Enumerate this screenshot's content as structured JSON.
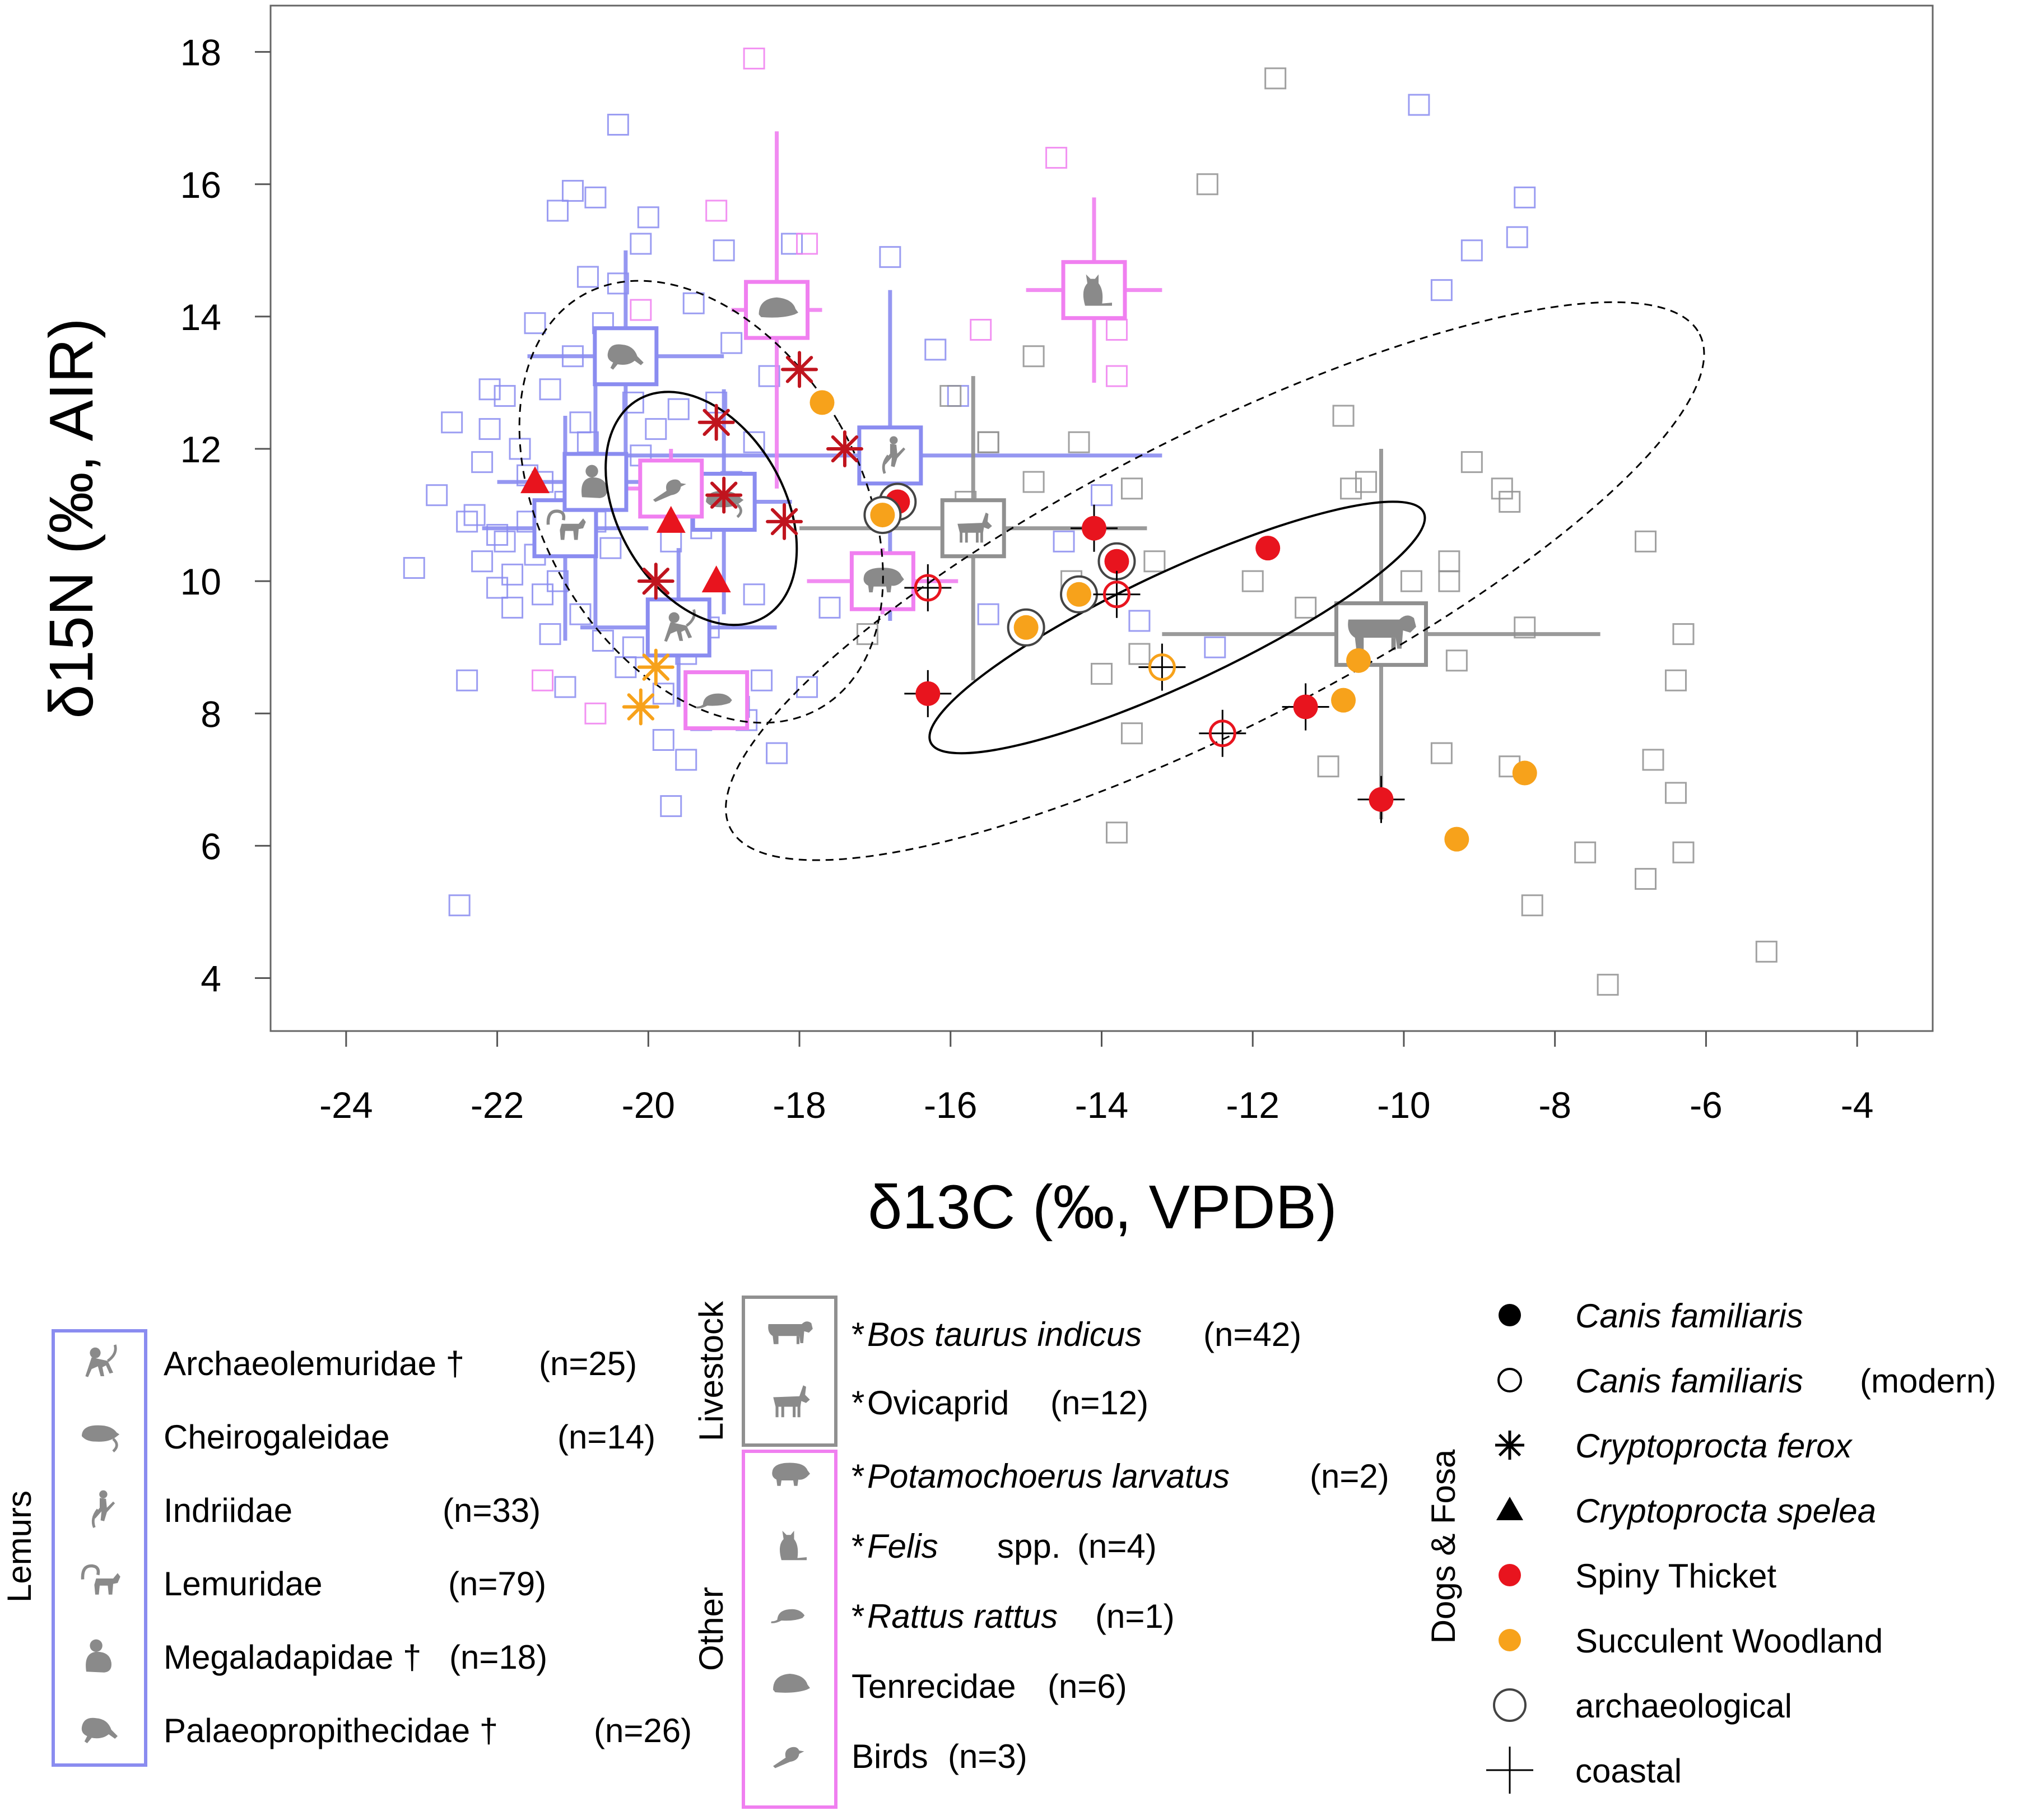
{
  "chart_data": {
    "type": "scatter",
    "title": "",
    "xlabel": "δ13C (‰, VPDB)",
    "ylabel": "δ15N (‰, AIR)",
    "xlim": [
      -25,
      -3
    ],
    "ylim": [
      3.2,
      18.7
    ],
    "xticks": [
      -24,
      -22,
      -20,
      -18,
      -16,
      -14,
      -12,
      -10,
      -8,
      -6,
      -4
    ],
    "yticks": [
      4,
      6,
      8,
      10,
      12,
      14,
      16,
      18
    ],
    "xtick_labels": [
      "-24",
      "-22",
      "-20",
      "-18",
      "-16",
      "-14",
      "-12",
      "-10",
      "-8",
      "-6",
      "-4"
    ],
    "ytick_labels": [
      "4",
      "6",
      "8",
      "10",
      "12",
      "14",
      "16",
      "18"
    ],
    "colors": {
      "lemur": "#8a8cf0",
      "other": "#f07ff0",
      "livestock": "#909090",
      "spiny": "#e8141e",
      "succulent": "#f7a21b",
      "fosa": "#c0141e"
    },
    "background_points": {
      "lemur": [
        [
          -23.1,
          10.2
        ],
        [
          -22.5,
          5.1
        ],
        [
          -22.4,
          8.5
        ],
        [
          -22.3,
          11
        ],
        [
          -22.2,
          11.8
        ],
        [
          -22.1,
          12.3
        ],
        [
          -22,
          10.7
        ],
        [
          -21.9,
          12.8
        ],
        [
          -21.8,
          9.6
        ],
        [
          -21.7,
          12
        ],
        [
          -21.6,
          10.9
        ],
        [
          -21.5,
          13.9
        ],
        [
          -21.4,
          11.5
        ],
        [
          -21.3,
          12.9
        ],
        [
          -21.2,
          15.6
        ],
        [
          -21.1,
          8.4
        ],
        [
          -21,
          15.9
        ],
        [
          -20.9,
          12.4
        ],
        [
          -20.8,
          14.6
        ],
        [
          -20.7,
          15.8
        ],
        [
          -20.6,
          9.1
        ],
        [
          -20.5,
          10.5
        ],
        [
          -20.4,
          16.9
        ],
        [
          -20.3,
          13.5
        ],
        [
          -20.2,
          12.7
        ],
        [
          -20.1,
          15.1
        ],
        [
          -20,
          15.5
        ],
        [
          -19.9,
          11.3
        ],
        [
          -19.8,
          7.6
        ],
        [
          -19.7,
          6.6
        ],
        [
          -19.6,
          12.6
        ],
        [
          -19.5,
          8.9
        ],
        [
          -19.4,
          14.2
        ],
        [
          -19.3,
          10.8
        ],
        [
          -19.2,
          9.3
        ],
        [
          -19,
          15
        ],
        [
          -18.9,
          11.5
        ],
        [
          -18.7,
          7.9
        ],
        [
          -18.6,
          12.1
        ],
        [
          -18.5,
          8.5
        ],
        [
          -18.4,
          13.1
        ],
        [
          -18.3,
          7.4
        ],
        [
          -18.1,
          15.1
        ],
        [
          -17.9,
          8.4
        ],
        [
          -17.6,
          9.6
        ],
        [
          -16.8,
          14.9
        ],
        [
          -16.2,
          13.5
        ],
        [
          -15.9,
          12.8
        ],
        [
          -15.5,
          9.5
        ],
        [
          -14.5,
          10.6
        ],
        [
          -14,
          11.3
        ],
        [
          -13.5,
          9.4
        ],
        [
          -12.5,
          9
        ],
        [
          -9.8,
          17.2
        ],
        [
          -9.5,
          14.4
        ],
        [
          -9.1,
          15
        ],
        [
          -8.5,
          15.2
        ],
        [
          -8.4,
          15.8
        ],
        [
          -22.2,
          10.3
        ],
        [
          -21.8,
          10.1
        ],
        [
          -22,
          9.9
        ],
        [
          -21.5,
          10.4
        ],
        [
          -21.9,
          10.6
        ],
        [
          -22.4,
          10.9
        ],
        [
          -21.2,
          10
        ],
        [
          -20.9,
          9.5
        ],
        [
          -21.3,
          9.2
        ],
        [
          -21.6,
          11.6
        ],
        [
          -21.1,
          11.2
        ],
        [
          -20.8,
          12.1
        ],
        [
          -21,
          13.4
        ],
        [
          -20.6,
          13.9
        ],
        [
          -20.4,
          14.5
        ],
        [
          -20.1,
          11.9
        ],
        [
          -19.9,
          12.3
        ],
        [
          -19.7,
          10.6
        ],
        [
          -20.2,
          9
        ],
        [
          -19.8,
          8.3
        ],
        [
          -20.3,
          8.7
        ],
        [
          -19.5,
          7.3
        ],
        [
          -19.3,
          7.9
        ],
        [
          -18.8,
          8.1
        ],
        [
          -18.6,
          9.8
        ],
        [
          -19.1,
          12.7
        ],
        [
          -18.9,
          13.6
        ],
        [
          -22.6,
          12.4
        ],
        [
          -22.8,
          11.3
        ],
        [
          -22.1,
          12.9
        ],
        [
          -21.4,
          9.8
        ],
        [
          -20.7,
          10.9
        ]
      ],
      "other": [
        [
          -18.6,
          17.9
        ],
        [
          -17.9,
          15.1
        ],
        [
          -14.6,
          16.4
        ],
        [
          -15.6,
          13.8
        ],
        [
          -13.8,
          13.8
        ],
        [
          -13.8,
          13.1
        ],
        [
          -19.1,
          15.6
        ],
        [
          -20.1,
          14.1
        ],
        [
          -20.7,
          8
        ],
        [
          -21.4,
          8.5
        ]
      ],
      "livestock": [
        [
          -11.7,
          17.6
        ],
        [
          -12.6,
          16
        ],
        [
          -10.8,
          12.5
        ],
        [
          -14.9,
          13.4
        ],
        [
          -14.3,
          12.1
        ],
        [
          -15.5,
          12.1
        ],
        [
          -14.9,
          11.5
        ],
        [
          -13.6,
          11.4
        ],
        [
          -13.3,
          10.3
        ],
        [
          -14.4,
          10
        ],
        [
          -12,
          10
        ],
        [
          -11.3,
          9.6
        ],
        [
          -13.5,
          8.9
        ],
        [
          -14,
          8.6
        ],
        [
          -13.6,
          7.7
        ],
        [
          -13.8,
          6.2
        ],
        [
          -11,
          7.2
        ],
        [
          -10.7,
          11.4
        ],
        [
          -10.5,
          11.5
        ],
        [
          -9.9,
          9.3
        ],
        [
          -9.3,
          8.8
        ],
        [
          -9.1,
          11.8
        ],
        [
          -8.7,
          11.4
        ],
        [
          -8.6,
          11.2
        ],
        [
          -8.4,
          9.3
        ],
        [
          -8.6,
          7.2
        ],
        [
          -8.3,
          5.1
        ],
        [
          -9.5,
          7.4
        ],
        [
          -9.9,
          10
        ],
        [
          -9.4,
          10.3
        ],
        [
          -9.4,
          10
        ],
        [
          -7.6,
          5.9
        ],
        [
          -7.3,
          3.9
        ],
        [
          -6.8,
          5.5
        ],
        [
          -6.7,
          7.3
        ],
        [
          -6.4,
          6.8
        ],
        [
          -6.3,
          5.9
        ],
        [
          -6.4,
          8.5
        ],
        [
          -6.3,
          9.2
        ],
        [
          -6.8,
          10.6
        ],
        [
          -5.2,
          4.4
        ],
        [
          -16,
          12.8
        ],
        [
          -15.8,
          11.2
        ],
        [
          -17.1,
          9.2
        ],
        [
          -15.5,
          12.1
        ]
      ]
    },
    "group_means": [
      {
        "name": "Archaeolemuridae",
        "group": "lemur",
        "x": -19.6,
        "y": 9.3,
        "sx": 1.3,
        "sy": 1.2
      },
      {
        "name": "Cheirogaleidae",
        "group": "lemur",
        "x": -19,
        "y": 11.2,
        "sx": 0.9,
        "sy": 1.7
      },
      {
        "name": "Indriidae",
        "group": "lemur",
        "x": -16.8,
        "y": 11.9,
        "sx": 3.6,
        "sy": 2.5
      },
      {
        "name": "Lemuridae",
        "group": "lemur",
        "x": -21.1,
        "y": 10.8,
        "sx": 1.1,
        "sy": 1.7
      },
      {
        "name": "Megaladapidae",
        "group": "lemur",
        "x": -20.7,
        "y": 11.5,
        "sx": 1.3,
        "sy": 2.2
      },
      {
        "name": "Palaeopropithecidae",
        "group": "lemur",
        "x": -20.3,
        "y": 13.4,
        "sx": 1.3,
        "sy": 1.6
      },
      {
        "name": "Bos taurus indicus",
        "group": "livestock",
        "x": -10.3,
        "y": 9.2,
        "sx": 2.9,
        "sy": 2.8
      },
      {
        "name": "Ovicaprid",
        "group": "livestock",
        "x": -15.7,
        "y": 10.8,
        "sx": 2.3,
        "sy": 2.3
      },
      {
        "name": "Potamochoerus larvatus",
        "group": "other",
        "x": -16.9,
        "y": 10,
        "sx": 1,
        "sy": 0.5
      },
      {
        "name": "Felis spp.",
        "group": "other",
        "x": -14.1,
        "y": 14.4,
        "sx": 0.9,
        "sy": 1.4
      },
      {
        "name": "Rattus rattus",
        "group": "other",
        "x": -19.1,
        "y": 8.2,
        "sx": 0,
        "sy": 0
      },
      {
        "name": "Tenrecidae",
        "group": "other",
        "x": -18.3,
        "y": 14.1,
        "sx": 0.6,
        "sy": 2.7
      },
      {
        "name": "Birds",
        "group": "other",
        "x": -19.7,
        "y": 11.4,
        "sx": 0.9,
        "sy": 0.6
      }
    ],
    "fosa_points": [
      {
        "species": "Cryptoprocta ferox",
        "x": -18,
        "y": 13.2
      },
      {
        "species": "Cryptoprocta ferox",
        "x": -19.1,
        "y": 12.4
      },
      {
        "species": "Cryptoprocta ferox",
        "x": -17.4,
        "y": 12
      },
      {
        "species": "Cryptoprocta ferox",
        "x": -19,
        "y": 11.3
      },
      {
        "species": "Cryptoprocta ferox",
        "x": -18.2,
        "y": 10.9
      },
      {
        "species": "Cryptoprocta ferox",
        "x": -19.9,
        "y": 10
      },
      {
        "species": "Cryptoprocta ferox",
        "x": -19.9,
        "y": 8.7,
        "habitat": "succulent"
      },
      {
        "species": "Cryptoprocta ferox",
        "x": -20.1,
        "y": 8.1,
        "habitat": "succulent"
      },
      {
        "species": "Cryptoprocta spelea",
        "x": -21.5,
        "y": 11.5
      },
      {
        "species": "Cryptoprocta spelea",
        "x": -19.7,
        "y": 10.9
      },
      {
        "species": "Cryptoprocta spelea",
        "x": -19.1,
        "y": 10
      }
    ],
    "dog_points": [
      {
        "x": -16.7,
        "y": 11.2,
        "habitat": "spiny",
        "modern": false,
        "archaeological": true,
        "coastal": false
      },
      {
        "x": -16.9,
        "y": 11,
        "habitat": "succulent",
        "modern": false,
        "archaeological": true,
        "coastal": false
      },
      {
        "x": -17.7,
        "y": 12.7,
        "habitat": "succulent",
        "modern": false,
        "archaeological": false,
        "coastal": false
      },
      {
        "x": -16.3,
        "y": 8.3,
        "habitat": "spiny",
        "modern": false,
        "archaeological": false,
        "coastal": true
      },
      {
        "x": -16.3,
        "y": 9.9,
        "habitat": "spiny",
        "modern": true,
        "archaeological": false,
        "coastal": true
      },
      {
        "x": -15,
        "y": 9.3,
        "habitat": "succulent",
        "modern": false,
        "archaeological": true,
        "coastal": false
      },
      {
        "x": -14.3,
        "y": 9.8,
        "habitat": "succulent",
        "modern": false,
        "archaeological": true,
        "coastal": false
      },
      {
        "x": -14.1,
        "y": 10.8,
        "habitat": "spiny",
        "modern": false,
        "archaeological": false,
        "coastal": true
      },
      {
        "x": -13.8,
        "y": 10.3,
        "habitat": "spiny",
        "modern": false,
        "archaeological": true,
        "coastal": false
      },
      {
        "x": -13.8,
        "y": 9.8,
        "habitat": "spiny",
        "modern": true,
        "archaeological": false,
        "coastal": true
      },
      {
        "x": -13.2,
        "y": 8.7,
        "habitat": "succulent",
        "modern": true,
        "archaeological": false,
        "coastal": true
      },
      {
        "x": -12.4,
        "y": 7.7,
        "habitat": "spiny",
        "modern": true,
        "archaeological": false,
        "coastal": true
      },
      {
        "x": -11.8,
        "y": 10.5,
        "habitat": "spiny",
        "modern": false,
        "archaeological": false,
        "coastal": false
      },
      {
        "x": -11.3,
        "y": 8.1,
        "habitat": "spiny",
        "modern": false,
        "archaeological": false,
        "coastal": true
      },
      {
        "x": -10.8,
        "y": 8.2,
        "habitat": "succulent",
        "modern": false,
        "archaeological": false,
        "coastal": false
      },
      {
        "x": -10.6,
        "y": 8.8,
        "habitat": "succulent",
        "modern": false,
        "archaeological": false,
        "coastal": false
      },
      {
        "x": -10.3,
        "y": 6.7,
        "habitat": "spiny",
        "modern": false,
        "archaeological": false,
        "coastal": true
      },
      {
        "x": -9.3,
        "y": 6.1,
        "habitat": "succulent",
        "modern": false,
        "archaeological": false,
        "coastal": false
      },
      {
        "x": -8.4,
        "y": 7.1,
        "habitat": "succulent",
        "modern": false,
        "archaeological": false,
        "coastal": false
      }
    ],
    "ellipses": [
      {
        "style": "dashed",
        "cx": -19.3,
        "cy": 11.2,
        "rx": 2.1,
        "ry": 3.6,
        "rotate_deg": 30
      },
      {
        "style": "solid",
        "cx": -19.3,
        "cy": 11.1,
        "rx": 1.1,
        "ry": 1.9,
        "rotate_deg": 30
      },
      {
        "style": "dashed",
        "cx": -12.5,
        "cy": 10,
        "rx": 7.2,
        "ry": 2.2,
        "rotate_deg": 27
      },
      {
        "style": "solid",
        "cx": -13,
        "cy": 9.3,
        "rx": 3.6,
        "ry": 0.85,
        "rotate_deg": 25
      }
    ]
  },
  "legend": {
    "lemurs": {
      "side_label": "Lemurs",
      "items": [
        {
          "label": "Archaeolemuridae †",
          "n": "(n=25)",
          "icon": "monkey-icon"
        },
        {
          "label": "Cheirogaleidae",
          "n": "(n=14)",
          "icon": "mouse-lemur-icon"
        },
        {
          "label": "Indriidae",
          "n": "(n=33)",
          "icon": "sifaka-icon"
        },
        {
          "label": "Lemuridae",
          "n": "(n=79)",
          "icon": "ringtail-lemur-icon"
        },
        {
          "label": "Megaladapidae †",
          "n": "(n=18)",
          "icon": "koala-lemur-icon"
        },
        {
          "label": "Palaeopropithecidae †",
          "n": "(n=26)",
          "icon": "sloth-lemur-icon"
        }
      ]
    },
    "livestock": {
      "side_label": "Livestock",
      "items": [
        {
          "star": "*",
          "label": "Bos taurus indicus",
          "n": "(n=42)",
          "italic": true,
          "icon": "cow-icon"
        },
        {
          "star": "*",
          "label": "Ovicaprid",
          "n": "(n=12)",
          "italic": false,
          "icon": "goat-icon"
        }
      ]
    },
    "other": {
      "side_label": "Other",
      "items": [
        {
          "star": "*",
          "label": "Potamochoerus larvatus",
          "n": "(n=2)",
          "italic": true,
          "icon": "bushpig-icon"
        },
        {
          "star": "*",
          "label": "Felis",
          "suffix": "spp.",
          "n": "(n=4)",
          "italic": true,
          "icon": "cat-icon"
        },
        {
          "star": "*",
          "label": "Rattus rattus",
          "n": "(n=1)",
          "italic": true,
          "icon": "rat-icon"
        },
        {
          "star": "",
          "label": "Tenrecidae",
          "n": "(n=6)",
          "italic": false,
          "icon": "tenrec-icon"
        },
        {
          "star": "",
          "label": "Birds",
          "n": "(n=3)",
          "italic": false,
          "icon": "bird-icon"
        }
      ]
    },
    "dogs_fosa": {
      "side_label": "Dogs & Fosa",
      "items": [
        {
          "symbol": "filled-circle",
          "label": "Canis familiaris",
          "suffix": "",
          "italic": true
        },
        {
          "symbol": "open-circle",
          "label": "Canis familiaris",
          "suffix": "(modern)",
          "italic": true
        },
        {
          "symbol": "asterisk",
          "label": "Cryptoprocta ferox",
          "suffix": "",
          "italic": true
        },
        {
          "symbol": "triangle",
          "label": "Cryptoprocta spelea",
          "suffix": "",
          "italic": true
        },
        {
          "symbol": "red-dot",
          "label": "Spiny Thicket",
          "suffix": "",
          "italic": false
        },
        {
          "symbol": "orange-dot",
          "label": "Succulent Woodland",
          "suffix": "",
          "italic": false
        },
        {
          "symbol": "ring",
          "label": "archaeological",
          "suffix": "",
          "italic": false
        },
        {
          "symbol": "cross",
          "label": "coastal",
          "suffix": "",
          "italic": false
        }
      ]
    }
  }
}
